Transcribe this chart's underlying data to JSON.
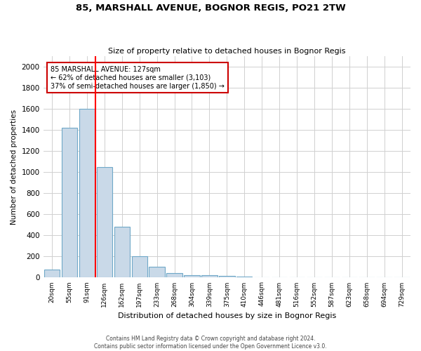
{
  "title": "85, MARSHALL AVENUE, BOGNOR REGIS, PO21 2TW",
  "subtitle": "Size of property relative to detached houses in Bognor Regis",
  "xlabel": "Distribution of detached houses by size in Bognor Regis",
  "ylabel": "Number of detached properties",
  "categories": [
    "20sqm",
    "55sqm",
    "91sqm",
    "126sqm",
    "162sqm",
    "197sqm",
    "233sqm",
    "268sqm",
    "304sqm",
    "339sqm",
    "375sqm",
    "410sqm",
    "446sqm",
    "481sqm",
    "516sqm",
    "552sqm",
    "587sqm",
    "623sqm",
    "658sqm",
    "694sqm",
    "729sqm"
  ],
  "values": [
    75,
    1425,
    1600,
    1050,
    480,
    200,
    100,
    40,
    25,
    20,
    15,
    10,
    0,
    0,
    0,
    0,
    0,
    0,
    0,
    0,
    0
  ],
  "bar_color": "#c9d9e8",
  "bar_edge_color": "#6fa8c8",
  "red_line_index": 3,
  "annotation_line1": "85 MARSHALL AVENUE: 127sqm",
  "annotation_line2": "← 62% of detached houses are smaller (3,103)",
  "annotation_line3": "37% of semi-detached houses are larger (1,850) →",
  "annotation_box_color": "#ffffff",
  "annotation_box_edge_color": "#cc0000",
  "ylim": [
    0,
    2100
  ],
  "yticks": [
    0,
    200,
    400,
    600,
    800,
    1000,
    1200,
    1400,
    1600,
    1800,
    2000
  ],
  "background_color": "#ffffff",
  "grid_color": "#d0d0d0",
  "footer_line1": "Contains HM Land Registry data © Crown copyright and database right 2024.",
  "footer_line2": "Contains public sector information licensed under the Open Government Licence v3.0."
}
